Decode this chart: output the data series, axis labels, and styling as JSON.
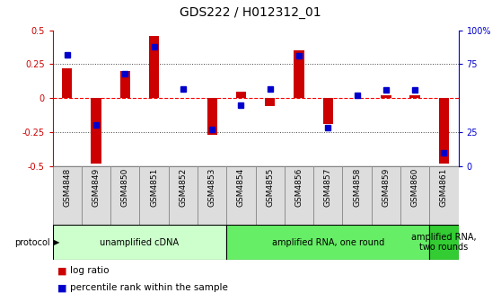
{
  "title": "GDS222 / H012312_01",
  "samples": [
    "GSM4848",
    "GSM4849",
    "GSM4850",
    "GSM4851",
    "GSM4852",
    "GSM4853",
    "GSM4854",
    "GSM4855",
    "GSM4856",
    "GSM4857",
    "GSM4858",
    "GSM4859",
    "GSM4860",
    "GSM4861"
  ],
  "log_ratio": [
    0.22,
    -0.48,
    0.2,
    0.46,
    0.0,
    -0.27,
    0.05,
    -0.06,
    0.35,
    -0.19,
    0.0,
    0.02,
    0.02,
    -0.48
  ],
  "percentile": [
    82,
    30,
    68,
    88,
    57,
    27,
    45,
    57,
    81,
    28,
    52,
    56,
    56,
    10
  ],
  "ylim_left": [
    -0.5,
    0.5
  ],
  "ylim_right": [
    0,
    100
  ],
  "bar_color": "#cc0000",
  "dot_color": "#0000cc",
  "grid_color": "#444444",
  "zero_line_color": "#ff0000",
  "protocol_groups": [
    {
      "label": "unamplified cDNA",
      "start": 0,
      "end": 5,
      "color": "#ccffcc"
    },
    {
      "label": "amplified RNA, one round",
      "start": 6,
      "end": 12,
      "color": "#66ee66"
    },
    {
      "label": "amplified RNA,\ntwo rounds",
      "start": 13,
      "end": 13,
      "color": "#33cc33"
    }
  ],
  "background_color": "#ffffff",
  "title_fontsize": 10,
  "tick_fontsize": 7,
  "sample_label_fontsize": 6.5,
  "proto_fontsize": 7,
  "legend_fontsize": 7.5,
  "bar_width": 0.35,
  "dot_size": 4
}
